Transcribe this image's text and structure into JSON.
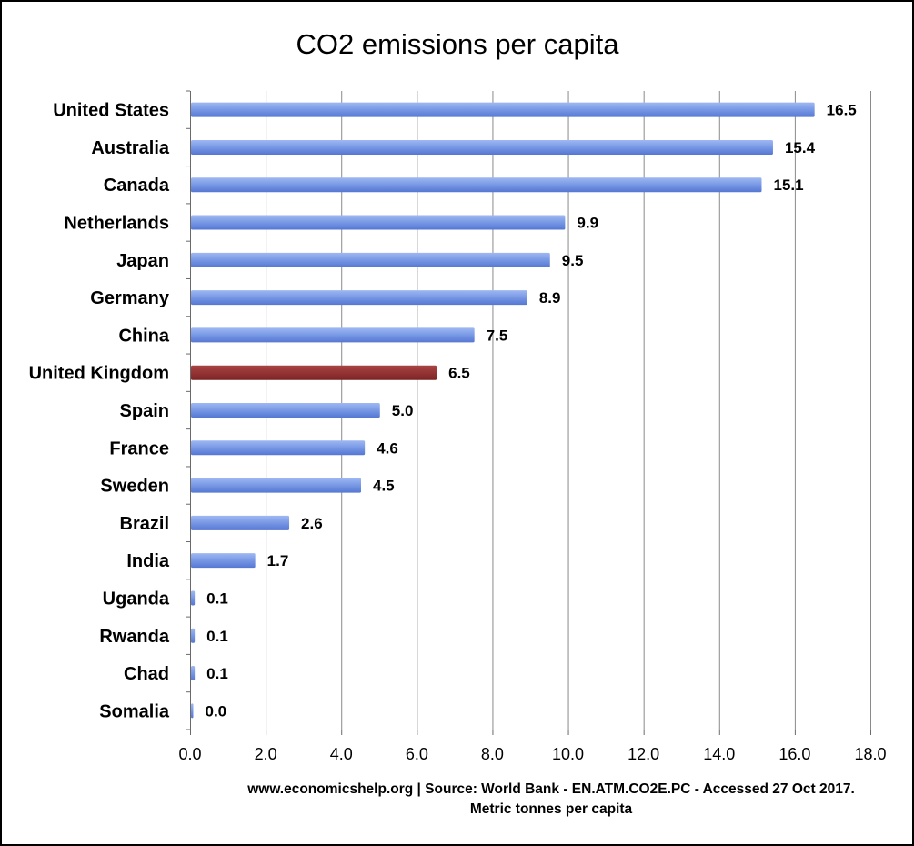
{
  "chart_data": {
    "type": "bar",
    "orientation": "horizontal",
    "title": "CO2 emissions per capita",
    "categories": [
      "United States",
      "Australia",
      "Canada",
      "Netherlands",
      "Japan",
      "Germany",
      "China",
      "United Kingdom",
      "Spain",
      "France",
      "Sweden",
      "Brazil",
      "India",
      "Uganda",
      "Rwanda",
      "Chad",
      "Somalia"
    ],
    "values": [
      16.5,
      15.4,
      15.1,
      9.9,
      9.5,
      8.9,
      7.5,
      6.5,
      5.0,
      4.6,
      4.5,
      2.6,
      1.7,
      0.1,
      0.1,
      0.1,
      0.0
    ],
    "value_labels": [
      "16.5",
      "15.4",
      "15.1",
      "9.9",
      "9.5",
      "8.9",
      "7.5",
      "6.5",
      "5.0",
      "4.6",
      "4.5",
      "2.6",
      "1.7",
      "0.1",
      "0.1",
      "0.1",
      "0.0"
    ],
    "xticks": [
      "0.0",
      "2.0",
      "4.0",
      "6.0",
      "8.0",
      "10.0",
      "12.0",
      "14.0",
      "16.0",
      "18.0"
    ],
    "xlim": [
      0,
      18
    ],
    "xlabel": "Metric tonnes per capita",
    "ylabel": "",
    "source_note": "www.economicshelp.org | Source: World Bank - EN.ATM.CO2E.PC - Accessed 27 Oct 2017.",
    "grid": "vertical",
    "legend": "none",
    "colors": {
      "default_bar": "#7b9be6",
      "highlight_bar": "#943434",
      "highlight_category": "United Kingdom"
    }
  }
}
